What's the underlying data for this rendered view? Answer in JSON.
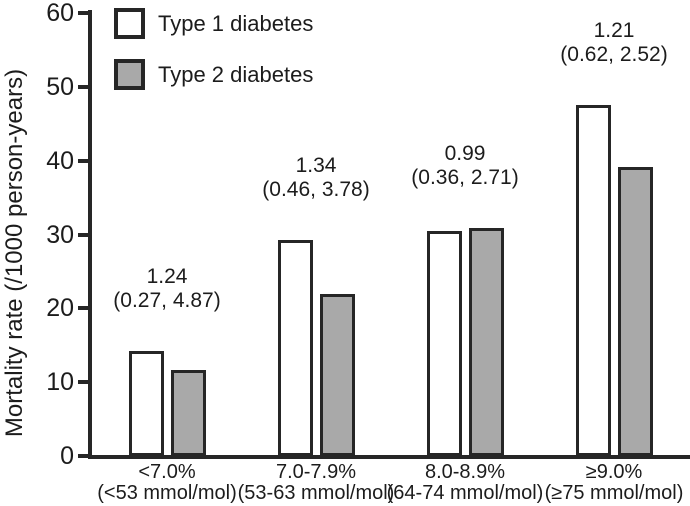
{
  "chart_data": {
    "type": "bar",
    "title": "",
    "xlabel": "",
    "ylabel": "Mortality rate (/1000 person-years)",
    "ylim": [
      0,
      60
    ],
    "yticks": [
      0,
      10,
      20,
      30,
      40,
      50,
      60
    ],
    "grid": false,
    "legend_position": "top-left-inside",
    "categories": [
      "<7.0%",
      "7.0-7.9%",
      "8.0-8.9%",
      "≥9.0%"
    ],
    "categories_sub": [
      "(<53 mmol/mol)",
      "(53-63 mmol/mol)",
      "(64-74 mmol/mol)",
      "(≥75 mmol/mol)"
    ],
    "series": [
      {
        "name": "Type 1 diabetes",
        "fill": "#ffffff",
        "values": [
          14.2,
          29.3,
          30.5,
          47.6
        ]
      },
      {
        "name": "Type 2 diabetes",
        "fill": "#a9a9a9",
        "values": [
          11.6,
          21.9,
          30.9,
          39.1
        ]
      }
    ],
    "annotations": [
      {
        "ratio": "1.24",
        "ci": "(0.27, 4.87)"
      },
      {
        "ratio": "1.34",
        "ci": "(0.46, 3.78)"
      },
      {
        "ratio": "0.99",
        "ci": "(0.36, 2.71)"
      },
      {
        "ratio": "1.21",
        "ci": "(0.62, 2.52)"
      }
    ],
    "colors": {
      "outline": "#262626",
      "axis": "#262626",
      "type1_fill": "#ffffff",
      "type2_fill": "#a9a9a9",
      "background": "#ffffff",
      "text": "#1c1c1c"
    }
  }
}
